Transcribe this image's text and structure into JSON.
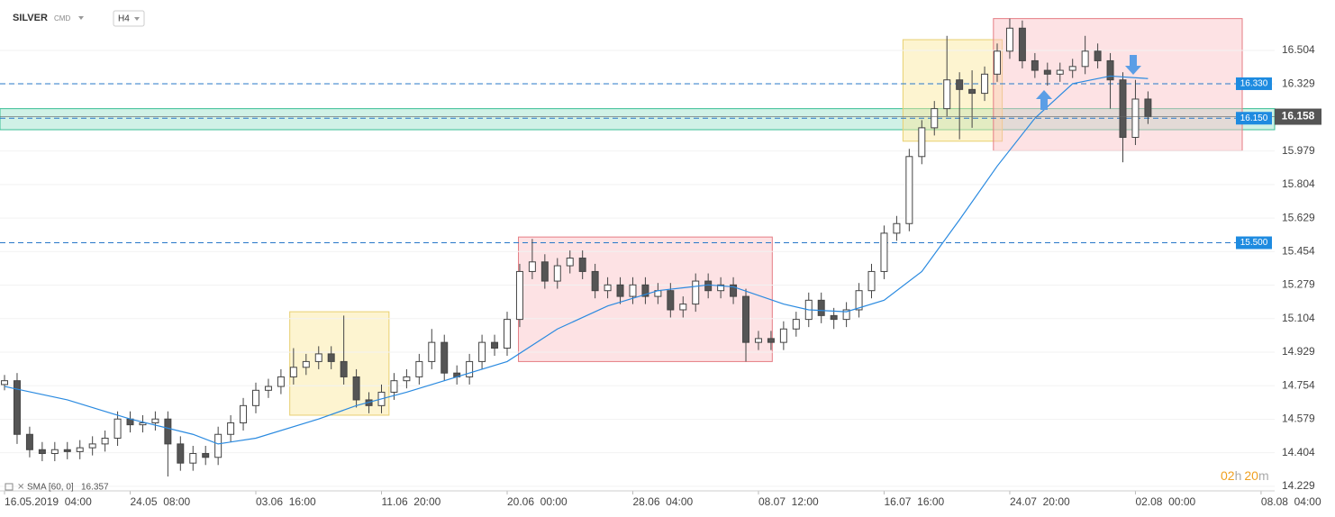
{
  "chart_data": {
    "type": "candlestick",
    "title": "SILVER",
    "exchange": "CMD",
    "timeframe": "H4",
    "indicator_label": "SMA [60, 0]",
    "indicator_value": 16.357,
    "countdown": [
      "02",
      "h",
      "20",
      "m"
    ],
    "last_price": {
      "value": 16.158,
      "label": "16.158"
    },
    "xlim": [
      -0.36,
      101.08
    ],
    "ylim": [
      14.205,
      16.767
    ],
    "grid": true,
    "yticks": [
      16.504,
      16.329,
      15.979,
      15.804,
      15.629,
      15.454,
      15.279,
      15.104,
      14.929,
      14.754,
      14.579,
      14.404,
      14.229
    ],
    "xticks": [
      {
        "value": 0,
        "label": "16.05.2019  04:00"
      },
      {
        "value": 10,
        "label": "24.05  08:00"
      },
      {
        "value": 20,
        "label": "03.06  16:00"
      },
      {
        "value": 30,
        "label": "11.06  20:00"
      },
      {
        "value": 40,
        "label": "20.06  00:00"
      },
      {
        "value": 50,
        "label": "28.06  04:00"
      },
      {
        "value": 60,
        "label": "08.07  12:00"
      },
      {
        "value": 70,
        "label": "16.07  16:00"
      },
      {
        "value": 80,
        "label": "24.07  20:00"
      },
      {
        "value": 90,
        "label": "02.08  00:00"
      },
      {
        "value": 100,
        "label": "08.08  04:00"
      }
    ],
    "open": [
      14.76,
      14.78,
      14.5,
      14.42,
      14.4,
      14.42,
      14.41,
      14.43,
      14.45,
      14.48,
      14.58,
      14.55,
      14.56,
      14.58,
      14.45,
      14.35,
      14.4,
      14.38,
      14.5,
      14.56,
      14.65,
      14.73,
      14.75,
      14.8,
      14.85,
      14.88,
      14.92,
      14.88,
      14.8,
      14.68,
      14.65,
      14.72,
      14.78,
      14.8,
      14.88,
      14.98,
      14.82,
      14.8,
      14.88,
      14.98,
      14.95,
      15.1,
      15.35,
      15.4,
      15.3,
      15.38,
      15.42,
      15.35,
      15.25,
      15.28,
      15.22,
      15.28,
      15.22,
      15.25,
      15.15,
      15.18,
      15.3,
      15.25,
      15.28,
      15.22,
      14.98,
      15.0,
      14.98,
      15.05,
      15.1,
      15.2,
      15.12,
      15.1,
      15.15,
      15.25,
      15.35,
      15.55,
      15.6,
      15.95,
      16.1,
      16.2,
      16.35,
      16.3,
      16.28,
      16.38,
      16.5,
      16.62,
      16.45,
      16.4,
      16.38,
      16.4,
      16.42,
      16.5,
      16.45,
      16.35,
      16.05,
      16.25
    ],
    "high": [
      14.81,
      14.82,
      14.54,
      14.46,
      14.46,
      14.46,
      14.47,
      14.49,
      14.52,
      14.62,
      14.62,
      14.6,
      14.62,
      14.62,
      14.49,
      14.44,
      14.44,
      14.54,
      14.6,
      14.69,
      14.77,
      14.79,
      14.84,
      14.95,
      14.92,
      14.96,
      14.96,
      15.12,
      14.84,
      14.72,
      14.76,
      14.82,
      14.84,
      14.92,
      15.05,
      15.02,
      14.86,
      14.92,
      15.02,
      15.02,
      15.14,
      15.39,
      15.52,
      15.44,
      15.42,
      15.46,
      15.46,
      15.39,
      15.32,
      15.32,
      15.32,
      15.32,
      15.29,
      15.29,
      15.22,
      15.34,
      15.34,
      15.32,
      15.32,
      15.26,
      15.04,
      15.04,
      15.09,
      15.14,
      15.24,
      15.24,
      15.16,
      15.19,
      15.29,
      15.39,
      15.59,
      15.64,
      15.99,
      16.14,
      16.24,
      16.58,
      16.39,
      16.4,
      16.42,
      16.54,
      16.67,
      16.66,
      16.49,
      16.44,
      16.44,
      16.46,
      16.58,
      16.54,
      16.49,
      16.39,
      16.35,
      16.29
    ],
    "low": [
      14.73,
      14.45,
      14.38,
      14.36,
      14.36,
      14.37,
      14.37,
      14.39,
      14.41,
      14.44,
      14.51,
      14.51,
      14.52,
      14.28,
      14.31,
      14.31,
      14.34,
      14.34,
      14.46,
      14.52,
      14.61,
      14.69,
      14.71,
      14.76,
      14.81,
      14.84,
      14.84,
      14.76,
      14.64,
      14.61,
      14.61,
      14.68,
      14.74,
      14.76,
      14.84,
      14.78,
      14.76,
      14.76,
      14.84,
      14.91,
      14.91,
      15.06,
      15.31,
      15.26,
      15.26,
      15.34,
      15.31,
      15.21,
      15.21,
      15.18,
      15.18,
      15.18,
      15.18,
      15.11,
      15.11,
      15.14,
      15.21,
      15.21,
      15.18,
      14.88,
      14.94,
      14.94,
      14.94,
      15.01,
      15.06,
      15.08,
      15.05,
      15.06,
      15.11,
      15.21,
      15.31,
      15.51,
      15.56,
      15.91,
      16.06,
      16.16,
      16.04,
      16.1,
      16.24,
      16.34,
      16.46,
      16.41,
      16.36,
      16.32,
      16.34,
      16.36,
      16.38,
      16.41,
      16.2,
      15.92,
      16.01,
      16.12
    ],
    "close": [
      14.78,
      14.5,
      14.42,
      14.4,
      14.42,
      14.41,
      14.43,
      14.45,
      14.48,
      14.58,
      14.55,
      14.56,
      14.58,
      14.45,
      14.35,
      14.4,
      14.38,
      14.5,
      14.56,
      14.65,
      14.73,
      14.75,
      14.8,
      14.85,
      14.88,
      14.92,
      14.88,
      14.8,
      14.68,
      14.65,
      14.72,
      14.78,
      14.8,
      14.88,
      14.98,
      14.82,
      14.8,
      14.88,
      14.98,
      14.95,
      15.1,
      15.35,
      15.4,
      15.3,
      15.38,
      15.42,
      15.35,
      15.25,
      15.28,
      15.22,
      15.28,
      15.22,
      15.25,
      15.15,
      15.18,
      15.3,
      15.25,
      15.28,
      15.22,
      14.98,
      15.0,
      14.98,
      15.05,
      15.1,
      15.2,
      15.12,
      15.1,
      15.15,
      15.25,
      15.35,
      15.55,
      15.6,
      15.95,
      16.1,
      16.2,
      16.35,
      16.3,
      16.28,
      16.38,
      16.5,
      16.62,
      16.45,
      16.4,
      16.38,
      16.4,
      16.42,
      16.5,
      16.45,
      16.35,
      16.05,
      16.25,
      16.158
    ],
    "sma": {
      "color": "#2a8ae0",
      "x": [
        0,
        5,
        10,
        15,
        17,
        20,
        25,
        28,
        32,
        36,
        40,
        44,
        48,
        52,
        56,
        58,
        62,
        64,
        67,
        70,
        73,
        76,
        79,
        82,
        85,
        88,
        91
      ],
      "values": [
        14.75,
        14.68,
        14.58,
        14.5,
        14.45,
        14.48,
        14.58,
        14.65,
        14.72,
        14.8,
        14.88,
        15.05,
        15.17,
        15.25,
        15.28,
        15.27,
        15.18,
        15.15,
        15.14,
        15.2,
        15.35,
        15.62,
        15.9,
        16.15,
        16.33,
        16.37,
        16.357
      ]
    },
    "levels": [
      {
        "value": 16.33,
        "label": "16.330"
      },
      {
        "value": 16.15,
        "label": "16.150"
      },
      {
        "value": 15.5,
        "label": "15.500"
      }
    ],
    "band": [
      16.09,
      16.2
    ],
    "zones": [
      {
        "kind": "range",
        "x": [
          22.7,
          30.6
        ],
        "y": [
          14.6,
          15.14
        ]
      },
      {
        "kind": "distribution",
        "x": [
          40.9,
          61.1
        ],
        "y": [
          14.88,
          15.53
        ]
      },
      {
        "kind": "range",
        "x": [
          71.5,
          79.4
        ],
        "y": [
          16.03,
          16.56
        ]
      },
      {
        "kind": "distribution",
        "x": [
          78.7,
          98.5
        ],
        "y": [
          15.98,
          16.67
        ]
      }
    ]
  }
}
